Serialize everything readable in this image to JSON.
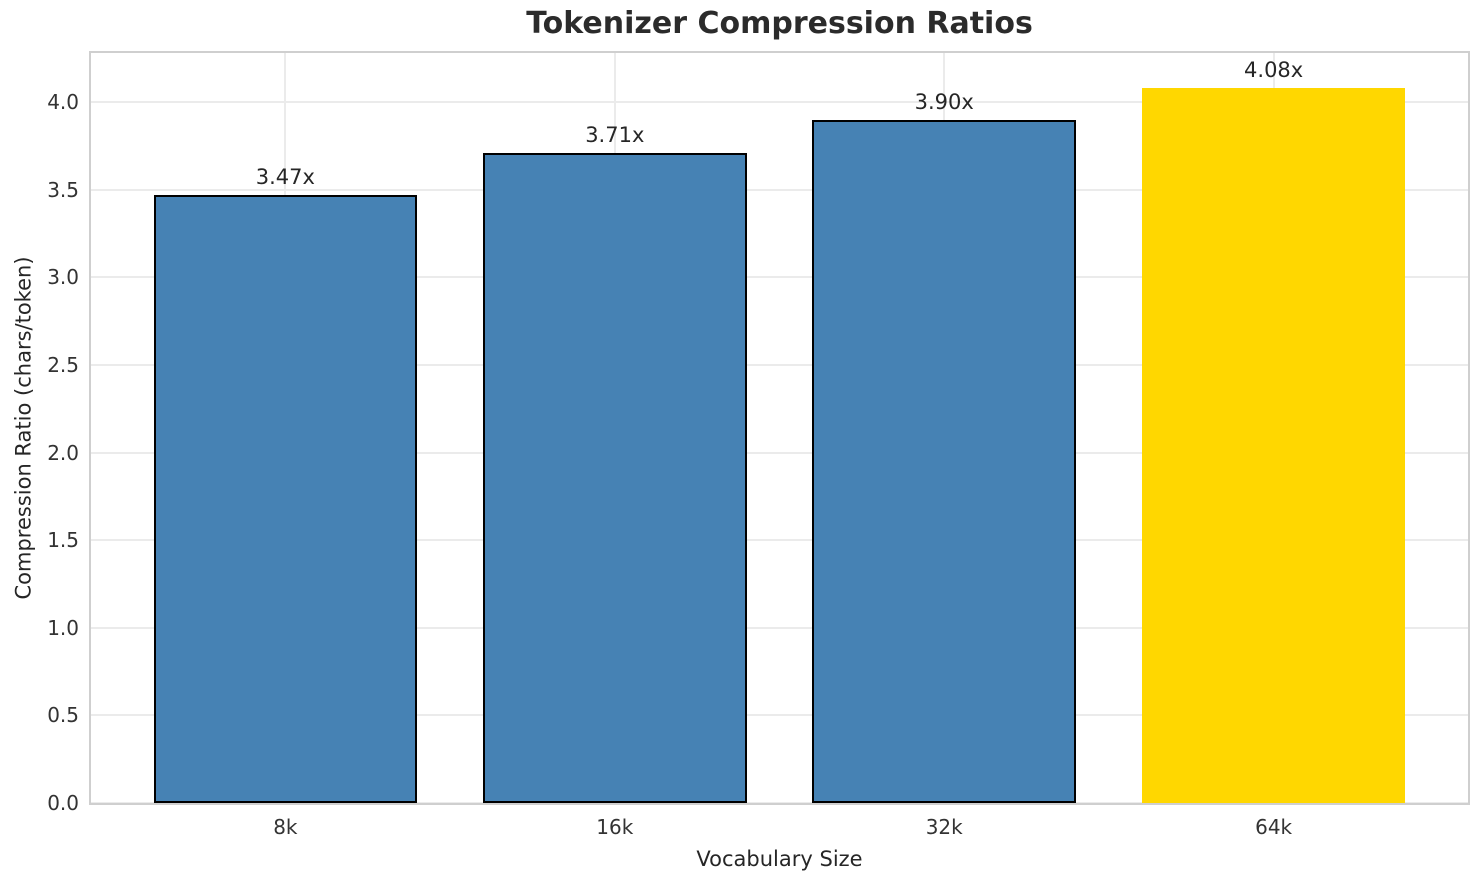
{
  "chart_data": {
    "type": "bar",
    "title": "Tokenizer Compression Ratios",
    "xlabel": "Vocabulary Size",
    "ylabel": "Compression Ratio (chars/token)",
    "categories": [
      "8k",
      "16k",
      "32k",
      "64k"
    ],
    "values": [
      3.47,
      3.71,
      3.9,
      4.08
    ],
    "value_labels": [
      "3.47x",
      "3.71x",
      "3.90x",
      "4.08x"
    ],
    "bar_colors": [
      "#4682B4",
      "#4682B4",
      "#4682B4",
      "#FFD700"
    ],
    "bar_edge_colors": [
      "#000000",
      "#000000",
      "#000000",
      "none"
    ],
    "highlight_category": "64k",
    "ylim": [
      0,
      4.28
    ],
    "ytick_values": [
      0,
      0.5,
      1,
      1.5,
      2,
      2.5,
      3,
      3.5,
      4
    ],
    "ytick_labels": [
      "0.0",
      "0.5",
      "1.0",
      "1.5",
      "2.0",
      "2.5",
      "3.0",
      "3.5",
      "4.0"
    ],
    "grid": true,
    "grid_color": "#ebebeb",
    "background_color": "#ffffff",
    "legend": false
  }
}
